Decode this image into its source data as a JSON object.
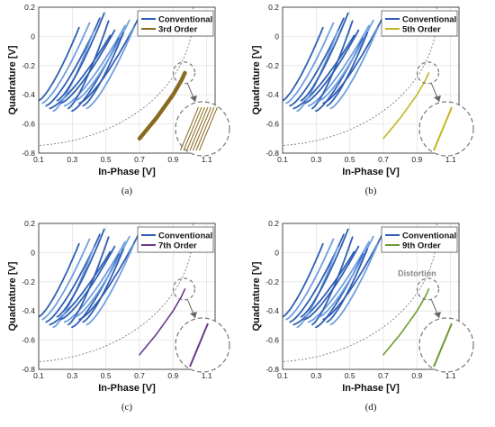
{
  "colors": {
    "conventional": "#2f5fb3",
    "conventional_light": "#6f9fe0",
    "reference_dashed": "#555555",
    "zoom_circle": "#777777"
  },
  "chart_data": [
    {
      "type": "line",
      "panel_caption": "(a)",
      "xlabel": "In-Phase [V]",
      "ylabel": "Quadrature [V]",
      "xlim": [
        0.1,
        1.15
      ],
      "ylim": [
        -0.8,
        0.2
      ],
      "xticks": [
        "0.1",
        "0.3",
        "0.5",
        "0.7",
        "0.9",
        "1.1"
      ],
      "yticks": [
        "0.2",
        "0",
        "-0.2",
        "-0.4",
        "-0.6",
        "-0.8"
      ],
      "grid": true,
      "legend_position": "top-right",
      "series": [
        {
          "name": "Conventional",
          "color": "#2f5fb3",
          "x": [
            0.1,
            0.2,
            0.3,
            0.4,
            0.5,
            0.6
          ],
          "y": [
            -0.45,
            -0.32,
            -0.18,
            -0.05,
            0.05,
            0.12
          ]
        },
        {
          "name": "3rd Order",
          "color": "#8a6a1f",
          "x": [
            0.7,
            0.75,
            0.8,
            0.85,
            0.9,
            0.95,
            0.97
          ],
          "y": [
            -0.7,
            -0.63,
            -0.56,
            -0.48,
            -0.4,
            -0.3,
            -0.25
          ]
        }
      ],
      "annotation": ""
    },
    {
      "type": "line",
      "panel_caption": "(b)",
      "xlabel": "In-Phase [V]",
      "ylabel": "Quadrature [V]",
      "xlim": [
        0.1,
        1.15
      ],
      "ylim": [
        -0.8,
        0.2
      ],
      "xticks": [
        "0.1",
        "0.3",
        "0.5",
        "0.7",
        "0.9",
        "1.1"
      ],
      "yticks": [
        "0.2",
        "0",
        "-0.2",
        "-0.4",
        "-0.6",
        "-0.8"
      ],
      "grid": true,
      "legend_position": "top-right",
      "series": [
        {
          "name": "Conventional",
          "color": "#2f5fb3",
          "x": [
            0.1,
            0.2,
            0.3,
            0.4,
            0.5,
            0.6
          ],
          "y": [
            -0.45,
            -0.32,
            -0.18,
            -0.05,
            0.05,
            0.12
          ]
        },
        {
          "name": "5th Order",
          "color": "#c3b51f",
          "x": [
            0.7,
            0.75,
            0.8,
            0.85,
            0.9,
            0.95,
            0.97
          ],
          "y": [
            -0.7,
            -0.63,
            -0.56,
            -0.48,
            -0.4,
            -0.3,
            -0.25
          ]
        }
      ],
      "annotation": ""
    },
    {
      "type": "line",
      "panel_caption": "(c)",
      "xlabel": "In-Phase [V]",
      "ylabel": "Quadrature [V]",
      "xlim": [
        0.1,
        1.15
      ],
      "ylim": [
        -0.8,
        0.2
      ],
      "xticks": [
        "0.1",
        "0.3",
        "0.5",
        "0.7",
        "0.9",
        "1.1"
      ],
      "yticks": [
        "0.2",
        "0",
        "-0.2",
        "-0.4",
        "-0.6",
        "-0.8"
      ],
      "grid": true,
      "legend_position": "top-right",
      "series": [
        {
          "name": "Conventional",
          "color": "#2f5fb3",
          "x": [
            0.1,
            0.2,
            0.3,
            0.4,
            0.5,
            0.6
          ],
          "y": [
            -0.45,
            -0.32,
            -0.18,
            -0.05,
            0.05,
            0.12
          ]
        },
        {
          "name": "7th Order",
          "color": "#6a3a8c",
          "x": [
            0.7,
            0.75,
            0.8,
            0.85,
            0.9,
            0.95,
            0.97
          ],
          "y": [
            -0.7,
            -0.63,
            -0.56,
            -0.48,
            -0.4,
            -0.3,
            -0.25
          ]
        }
      ],
      "annotation": ""
    },
    {
      "type": "line",
      "panel_caption": "(d)",
      "xlabel": "In-Phase [V]",
      "ylabel": "Quadrature [V]",
      "xlim": [
        0.1,
        1.15
      ],
      "ylim": [
        -0.8,
        0.2
      ],
      "xticks": [
        "0.1",
        "0.3",
        "0.5",
        "0.7",
        "0.9",
        "1.1"
      ],
      "yticks": [
        "0.2",
        "0",
        "-0.2",
        "-0.4",
        "-0.6",
        "-0.8"
      ],
      "grid": true,
      "legend_position": "top-right",
      "series": [
        {
          "name": "Conventional",
          "color": "#2f5fb3",
          "x": [
            0.1,
            0.2,
            0.3,
            0.4,
            0.5,
            0.6
          ],
          "y": [
            -0.45,
            -0.32,
            -0.18,
            -0.05,
            0.05,
            0.12
          ]
        },
        {
          "name": "9th Order",
          "color": "#6f9a2e",
          "x": [
            0.7,
            0.75,
            0.8,
            0.85,
            0.9,
            0.95,
            0.97
          ],
          "y": [
            -0.7,
            -0.63,
            -0.56,
            -0.48,
            -0.4,
            -0.3,
            -0.25
          ]
        }
      ],
      "annotation": "Distortion"
    }
  ]
}
